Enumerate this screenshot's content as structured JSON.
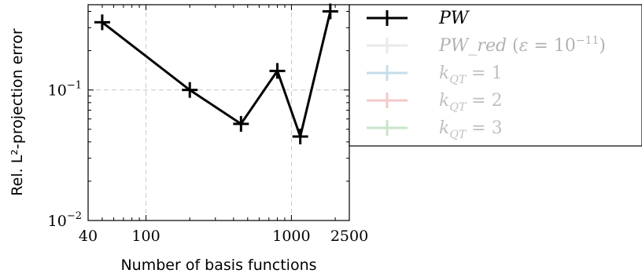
{
  "chart_data": {
    "type": "line",
    "title": "",
    "xlabel": "Number of basis functions",
    "ylabel": "Rel. L²-projection error",
    "x_scale": "log",
    "y_scale": "log",
    "xlim": [
      40,
      2500
    ],
    "ylim": [
      0.01,
      0.45
    ],
    "x_ticks": [
      {
        "value": 40,
        "label": "40"
      },
      {
        "value": 100,
        "label": "100"
      },
      {
        "value": 1000,
        "label": "1000"
      },
      {
        "value": 2500,
        "label": "2500"
      }
    ],
    "y_ticks": [
      {
        "value": 0.01,
        "base": "10",
        "exp": "−2"
      },
      {
        "value": 0.1,
        "base": "10",
        "exp": "−1"
      }
    ],
    "grid": true,
    "legend_position": "top-right, outside plot",
    "series": [
      {
        "name": "PW",
        "color": "#000000",
        "opacity": 1.0,
        "points": [
          [
            50,
            0.33
          ],
          [
            200,
            0.1
          ],
          [
            450,
            0.055
          ],
          [
            800,
            0.14
          ],
          [
            1150,
            0.044
          ],
          [
            1850,
            0.4
          ]
        ]
      },
      {
        "name": "PW_red (ε = 10⁻¹¹)",
        "color": "#bbbbbb",
        "opacity": 0.3,
        "points": []
      },
      {
        "name": "k_QT = 1",
        "color": "#1f77b4",
        "opacity": 0.25,
        "points": []
      },
      {
        "name": "k_QT = 2",
        "color": "#d62728",
        "opacity": 0.25,
        "points": []
      },
      {
        "name": "k_QT = 3",
        "color": "#2ca02c",
        "opacity": 0.25,
        "points": []
      }
    ]
  }
}
